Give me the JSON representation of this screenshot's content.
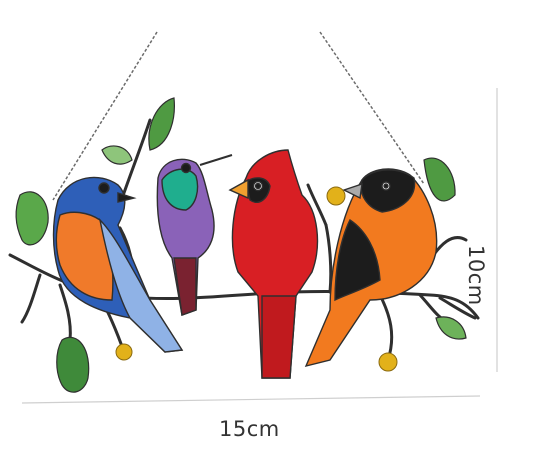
{
  "product": {
    "name_icon": "stained-glass-birds-suncatcher",
    "birds": [
      "bluebird",
      "hummingbird",
      "cardinal",
      "oriole"
    ]
  },
  "dimensions": {
    "width_label": "15cm",
    "height_label": "10cm"
  },
  "colors": {
    "chain": "#6b6b6b",
    "branch": "#2f2f2f",
    "leaf": "#4f9a42",
    "bluebird_blue": "#2e5fb8",
    "bluebird_orange": "#f07a2a",
    "hummingbird_green": "#1fae8e",
    "hummingbird_purple": "#8a62b8",
    "cardinal_red": "#d81f24",
    "oriole_orange": "#f27a1f",
    "oriole_black": "#1c1c1c",
    "bead_amber": "#e2b11a",
    "dimension_line": "#cfcfcf",
    "text": "#333333"
  }
}
